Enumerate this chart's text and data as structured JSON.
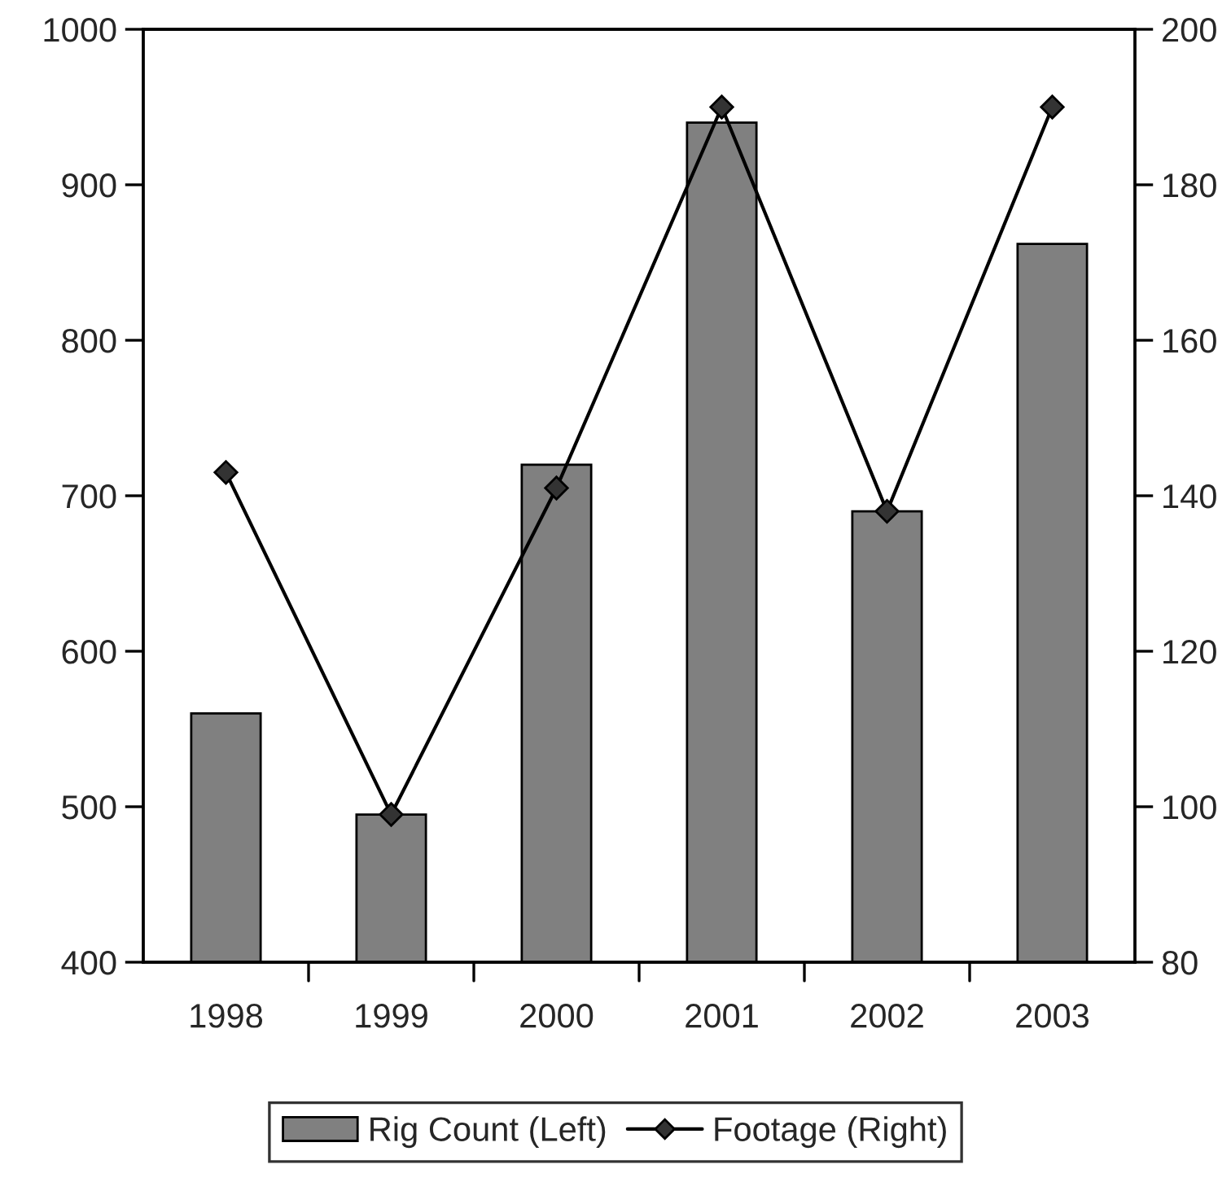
{
  "chart_data": {
    "type": "bar",
    "categories": [
      "1998",
      "1999",
      "2000",
      "2001",
      "2002",
      "2003"
    ],
    "series": [
      {
        "name": "Rig Count (Left)",
        "color": "#808080",
        "values": [
          560,
          495,
          720,
          940,
          690,
          862
        ]
      },
      {
        "name": "Footage (Right)",
        "type": "line",
        "axis": "y2",
        "color": "#000000",
        "marker": "diamond",
        "values": [
          143,
          99,
          141,
          190,
          138,
          190
        ]
      }
    ],
    "ylim": [
      400,
      1000
    ],
    "yticks": [
      400,
      500,
      600,
      700,
      800,
      900,
      1000
    ],
    "y2lim": [
      80,
      200
    ],
    "y2ticks": [
      80,
      100,
      120,
      140,
      160,
      180,
      200
    ],
    "grid": false,
    "legend": "bottom"
  }
}
